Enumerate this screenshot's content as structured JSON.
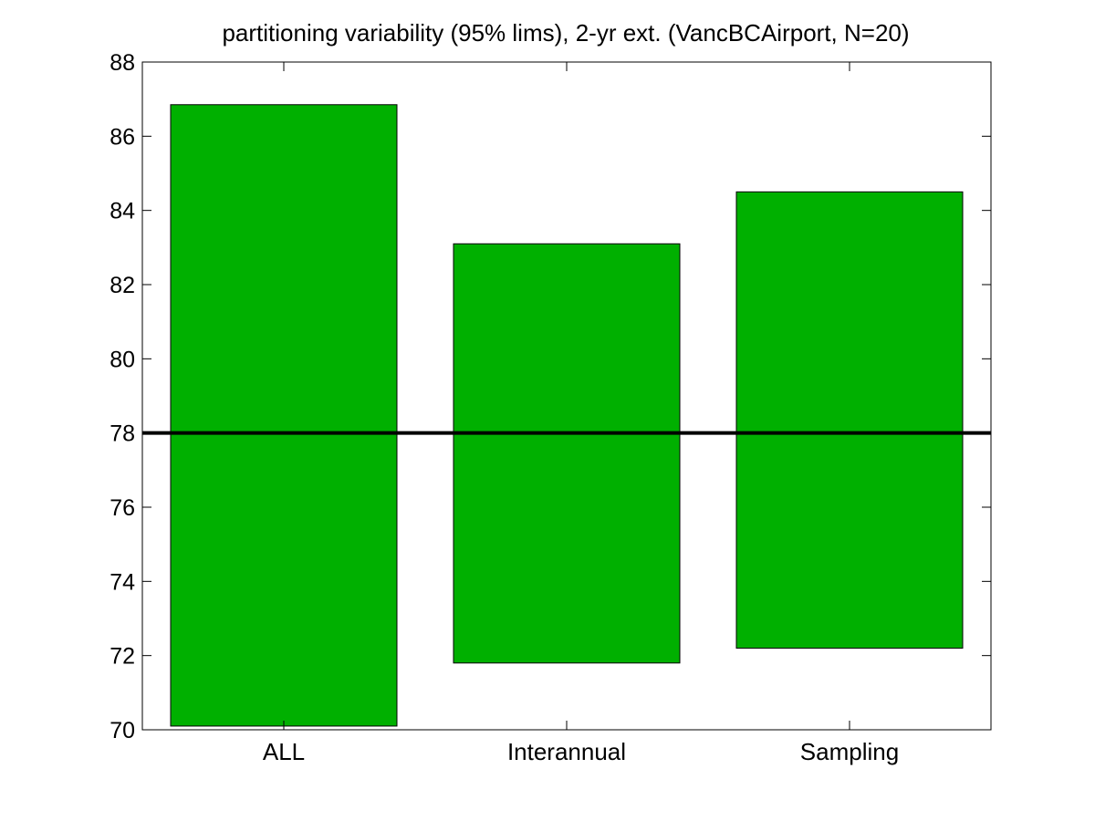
{
  "chart_data": {
    "type": "bar",
    "title": "partitioning variability (95% lims), 2-yr ext. (VancBCAirport, N=20)",
    "xlabel": "",
    "ylabel": "",
    "categories": [
      "ALL",
      "Interannual",
      "Sampling"
    ],
    "series": [
      {
        "low": [
          70.1,
          71.8,
          72.2
        ],
        "high": [
          86.85,
          83.1,
          84.5
        ]
      }
    ],
    "ylim": [
      70,
      88
    ],
    "yticks": [
      "70",
      "72",
      "74",
      "76",
      "78",
      "80",
      "82",
      "84",
      "86",
      "88"
    ],
    "reference_line": 78,
    "grid": false,
    "legend": "none",
    "colors": {
      "bar_fill": "#00b000",
      "bar_edge": "#000000",
      "reference_line": "#000000",
      "axes": "#000000"
    }
  }
}
